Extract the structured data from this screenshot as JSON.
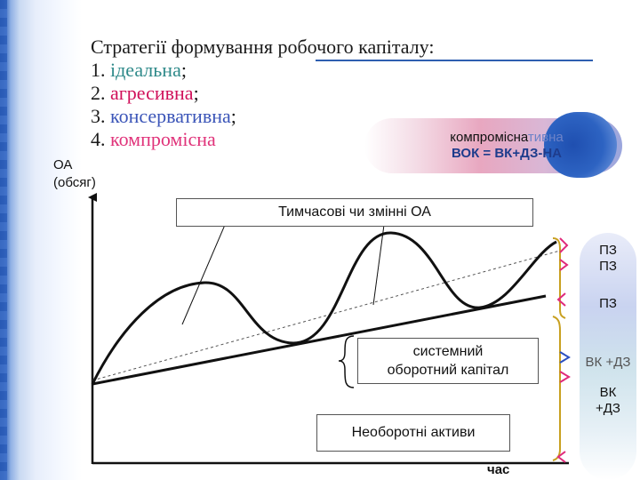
{
  "title": {
    "heading": "Стратегії формування робочого капіталу:",
    "items": [
      {
        "num": "1. ",
        "name": "ідеальна",
        "end": ";"
      },
      {
        "num": "2. ",
        "name": "агресивна",
        "end": ";"
      },
      {
        "num": "3. ",
        "name": "консервативна",
        "end": ";"
      },
      {
        "num": "4. ",
        "name": "компромісна",
        "end": ""
      }
    ]
  },
  "axis": {
    "y_label_1": "ОА",
    "y_label_2": "(обсяг)",
    "x_label": "час"
  },
  "callout": {
    "strategy": "компромісна",
    "faded_suffix": "тивна",
    "formula": "ВОК = ВК+ДЗ-НА"
  },
  "boxes": {
    "temporary": "Тимчасові чи змінні  ОА",
    "systemic_1": "системний",
    "systemic_2": "оборотний капітал",
    "fixed": "Необоротні активи"
  },
  "right_column": {
    "top_1": "ПЗ",
    "top_2": "ПЗ",
    "mid": "ПЗ",
    "ghost": "ВК +ДЗ",
    "bottom_1": "ВК",
    "bottom_2": "+ДЗ"
  },
  "colors": {
    "accent_blue": "#2e5fb0",
    "ideal": "#2f8a8a",
    "aggressive": "#d0105a",
    "conservative": "#3b55b8",
    "compromise": "#e0337a",
    "bracket_gold": "#c8a020",
    "bracket_pink": "#e02a7a"
  }
}
